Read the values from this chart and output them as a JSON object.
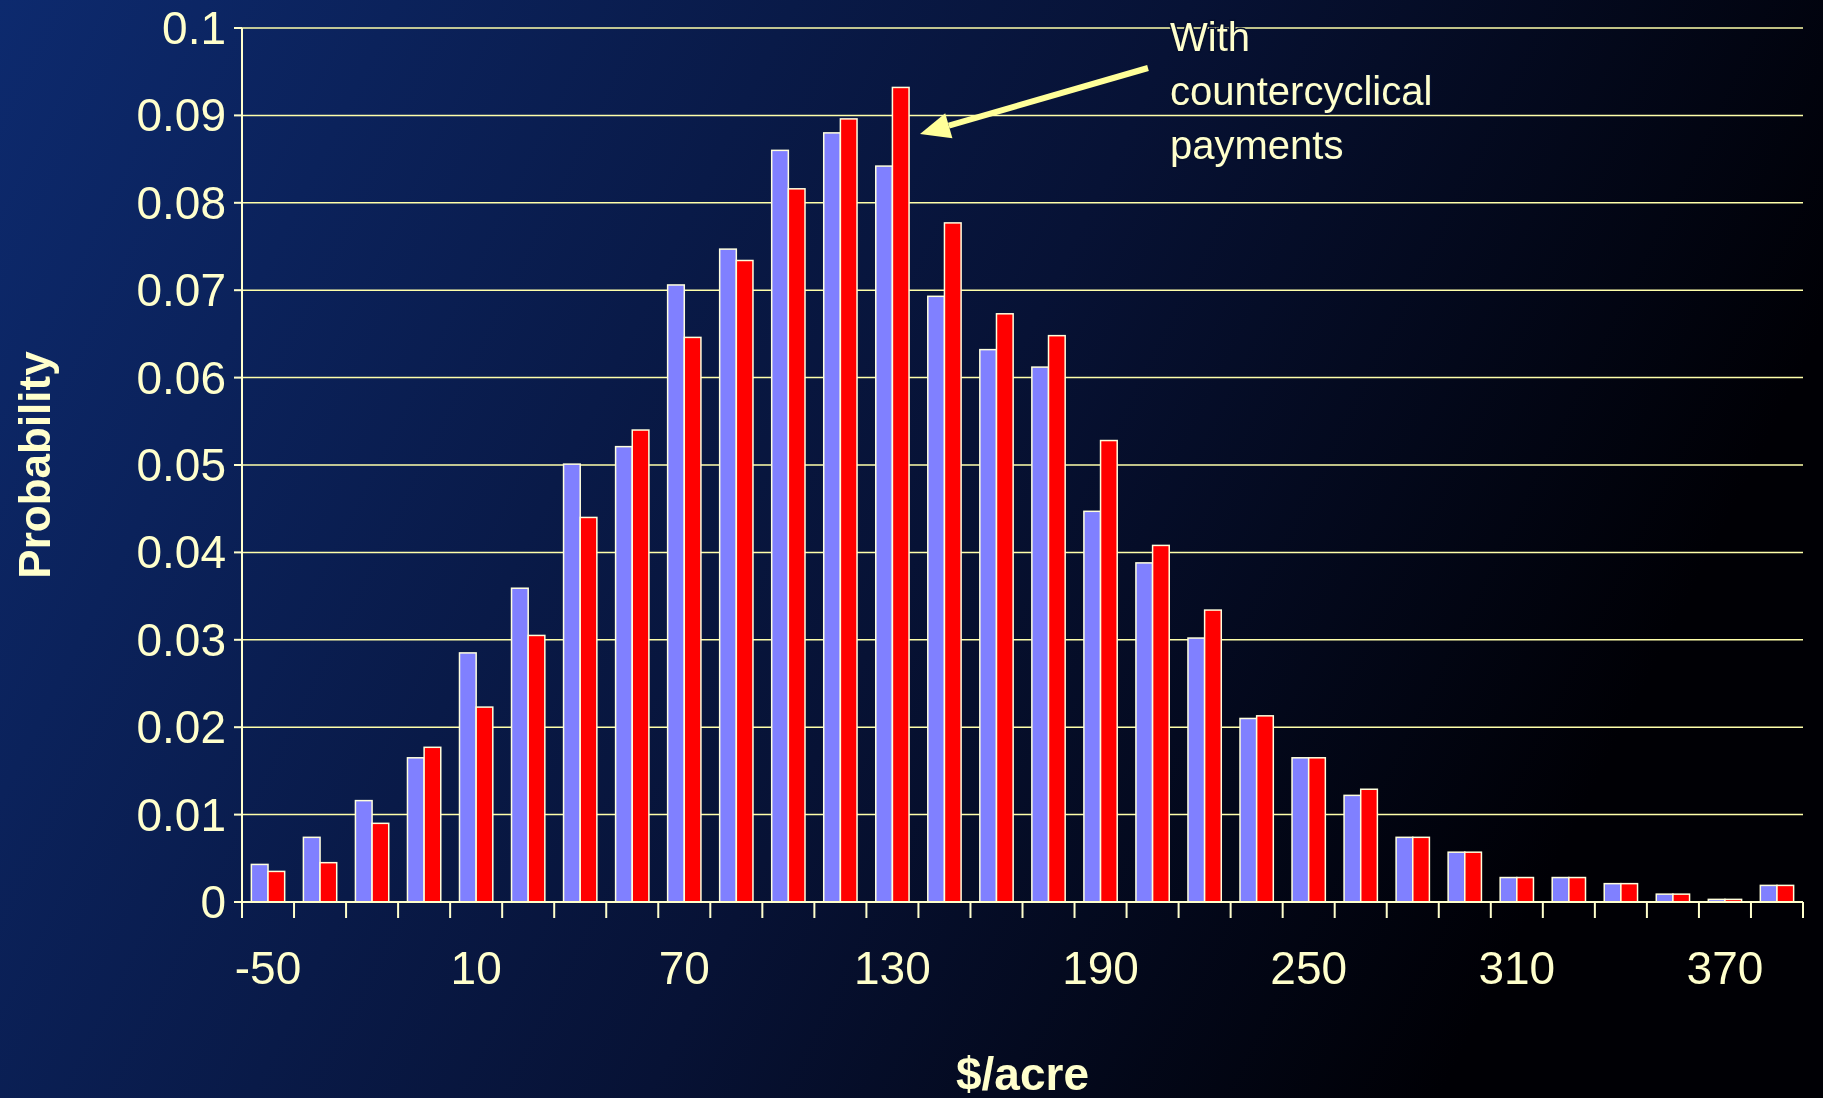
{
  "chart_data": {
    "type": "bar",
    "xlabel": "$/acre",
    "ylabel": "Probability",
    "categories": [
      "-50",
      null,
      null,
      null,
      "10",
      null,
      null,
      null,
      "70",
      null,
      null,
      null,
      "130",
      null,
      null,
      null,
      "190",
      null,
      null,
      null,
      "250",
      null,
      null,
      null,
      "310",
      null,
      null,
      null,
      "370",
      null
    ],
    "series": [
      {
        "color": "#8080ff",
        "values": [
          0.0043,
          0.0074,
          0.0116,
          0.0165,
          0.0285,
          0.0359,
          0.0501,
          0.0521,
          0.0706,
          0.0747,
          0.086,
          0.088,
          0.0842,
          0.0693,
          0.0632,
          0.0612,
          0.0447,
          0.0388,
          0.0302,
          0.021,
          0.0165,
          0.0122,
          0.0074,
          0.0057,
          0.0028,
          0.0028,
          0.0021,
          0.0009,
          0.0003,
          0.0019
        ]
      },
      {
        "color": "#ff0000",
        "values": [
          0.0035,
          0.0045,
          0.009,
          0.0177,
          0.0223,
          0.0305,
          0.044,
          0.054,
          0.0646,
          0.0734,
          0.0816,
          0.0896,
          0.0932,
          0.0777,
          0.0673,
          0.0648,
          0.0528,
          0.0408,
          0.0334,
          0.0213,
          0.0165,
          0.0129,
          0.0074,
          0.0057,
          0.0028,
          0.0028,
          0.0021,
          0.0009,
          0.0003,
          0.0019
        ]
      }
    ],
    "ylim": [
      0,
      0.1
    ],
    "yticks": [
      0,
      0.01,
      0.02,
      0.03,
      0.04,
      0.05,
      0.06,
      0.07,
      0.08,
      0.09,
      0.1
    ],
    "grid": "y",
    "annotations": [
      "With countercyclical payments"
    ]
  }
}
